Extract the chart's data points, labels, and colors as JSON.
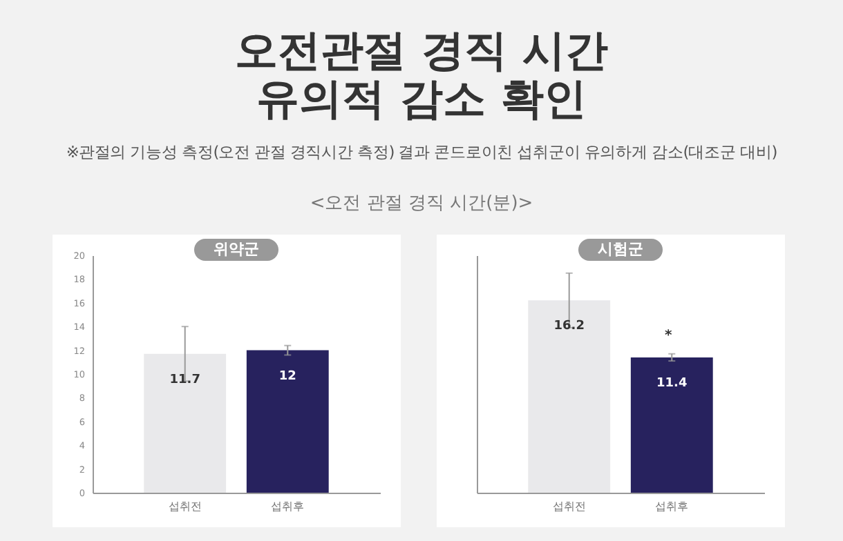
{
  "chart_data": [
    {
      "type": "other",
      "title": "오전관절 경직 시간\n유의적 감소 확인",
      "subtitle": "※관절의 기능성 측정(오전 관절 경직시간 측정) 결과 콘드로이친 섭취군이 유의하게 감소(대조군 대비)",
      "annotations": [
        "<오전 관절 경직 시간(분)>"
      ]
    },
    {
      "type": "bar",
      "title": "위약군",
      "categories": [
        "섭취전",
        "섭취후"
      ],
      "values": [
        11.7,
        12
      ],
      "colors": [
        "#e9e9eb",
        "#27225e"
      ],
      "errors": [
        2.3,
        0.4
      ],
      "data_labels": true,
      "ylim": [
        0,
        20
      ],
      "yticks": [
        0,
        2,
        4,
        6,
        8,
        10,
        12,
        14,
        16,
        18,
        20
      ]
    },
    {
      "type": "bar",
      "title": "시험군",
      "categories": [
        "섭취전",
        "섭취후"
      ],
      "values": [
        16.2,
        11.4
      ],
      "colors": [
        "#e9e9eb",
        "#27225e"
      ],
      "errors": [
        2.3,
        0.3
      ],
      "data_labels": true,
      "ylim": [
        0,
        20
      ],
      "tick_labels": "x",
      "annotations": [
        "*"
      ]
    }
  ]
}
